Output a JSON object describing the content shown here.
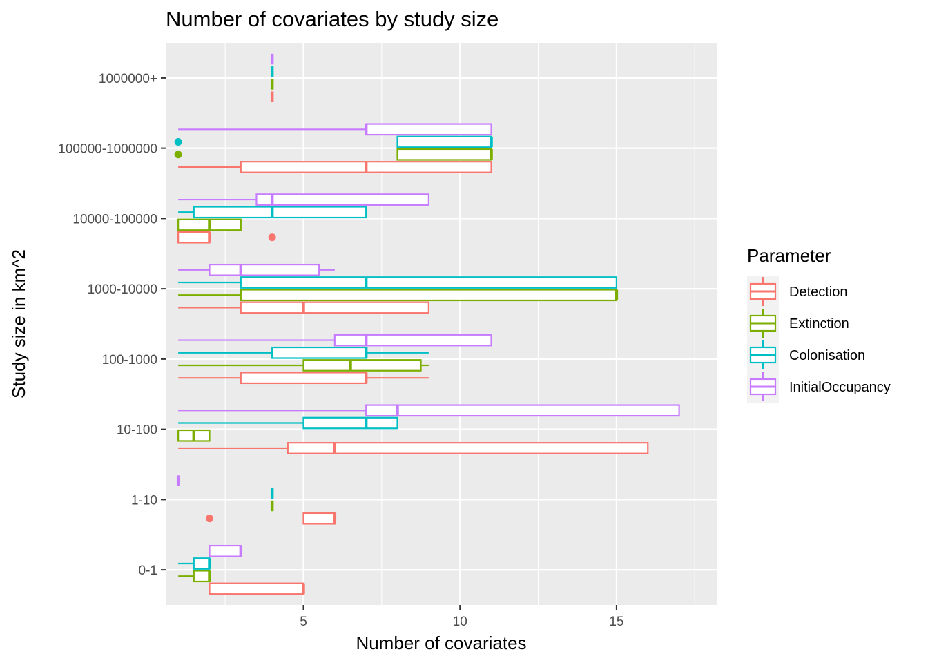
{
  "chart_data": {
    "type": "boxplot",
    "orientation": "horizontal",
    "title": "Number of covariates by study size",
    "xlabel": "Number of covariates",
    "ylabel": "Study size in km^2",
    "xlim": [
      0.6,
      18.2
    ],
    "x_ticks": [
      5,
      10,
      15
    ],
    "categories": [
      "0-1",
      "1-10",
      "10-100",
      "100-1000",
      "1000-10000",
      "10000-100000",
      "100000-1000000",
      "1000000+"
    ],
    "legend": {
      "title": "Parameter",
      "position": "right"
    },
    "grid": true,
    "series": [
      {
        "name": "Detection",
        "color": "#F8766D",
        "boxes": [
          {
            "category": "0-1",
            "min": 2,
            "q1": 2,
            "median": 5,
            "q3": 5,
            "max": 5,
            "outliers": []
          },
          {
            "category": "1-10",
            "min": 5,
            "q1": 5,
            "median": 6,
            "q3": 6,
            "max": 6,
            "outliers": [
              2
            ]
          },
          {
            "category": "10-100",
            "min": 1,
            "q1": 4.5,
            "median": 6,
            "q3": 16,
            "max": 16,
            "outliers": []
          },
          {
            "category": "100-1000",
            "min": 1,
            "q1": 3,
            "median": 7,
            "q3": 7,
            "max": 9,
            "outliers": []
          },
          {
            "category": "1000-10000",
            "min": 1,
            "q1": 3,
            "median": 5,
            "q3": 9,
            "max": 9,
            "outliers": []
          },
          {
            "category": "10000-100000",
            "min": 1,
            "q1": 1,
            "median": 2,
            "q3": 2,
            "max": 2,
            "outliers": [
              4
            ]
          },
          {
            "category": "100000-1000000",
            "min": 1,
            "q1": 3,
            "median": 7,
            "q3": 11,
            "max": 11,
            "outliers": []
          },
          {
            "category": "1000000+",
            "min": 4,
            "q1": 4,
            "median": 4,
            "q3": 4,
            "max": 4,
            "outliers": []
          }
        ]
      },
      {
        "name": "Extinction",
        "color": "#7CAE00",
        "boxes": [
          {
            "category": "0-1",
            "min": 1,
            "q1": 1.5,
            "median": 2,
            "q3": 2,
            "max": 2,
            "outliers": []
          },
          {
            "category": "1-10",
            "min": 4,
            "q1": 4,
            "median": 4,
            "q3": 4,
            "max": 4,
            "outliers": []
          },
          {
            "category": "10-100",
            "min": 1,
            "q1": 1,
            "median": 1.5,
            "q3": 2,
            "max": 2,
            "outliers": []
          },
          {
            "category": "100-1000",
            "min": 1,
            "q1": 5,
            "median": 6.5,
            "q3": 8.75,
            "max": 9,
            "outliers": []
          },
          {
            "category": "1000-10000",
            "min": 1,
            "q1": 3,
            "median": 15,
            "q3": 15,
            "max": 15,
            "outliers": []
          },
          {
            "category": "10000-100000",
            "min": 1,
            "q1": 1,
            "median": 2,
            "q3": 3,
            "max": 3,
            "outliers": []
          },
          {
            "category": "100000-1000000",
            "min": 8,
            "q1": 8,
            "median": 11,
            "q3": 11,
            "max": 11,
            "outliers": [
              1
            ]
          },
          {
            "category": "1000000+",
            "min": 4,
            "q1": 4,
            "median": 4,
            "q3": 4,
            "max": 4,
            "outliers": []
          }
        ]
      },
      {
        "name": "Colonisation",
        "color": "#00BFC4",
        "boxes": [
          {
            "category": "0-1",
            "min": 1,
            "q1": 1.5,
            "median": 2,
            "q3": 2,
            "max": 2,
            "outliers": []
          },
          {
            "category": "1-10",
            "min": 4,
            "q1": 4,
            "median": 4,
            "q3": 4,
            "max": 4,
            "outliers": []
          },
          {
            "category": "10-100",
            "min": 1,
            "q1": 5,
            "median": 7,
            "q3": 8,
            "max": 8,
            "outliers": []
          },
          {
            "category": "100-1000",
            "min": 1,
            "q1": 4,
            "median": 7,
            "q3": 7,
            "max": 9,
            "outliers": []
          },
          {
            "category": "1000-10000",
            "min": 1,
            "q1": 3,
            "median": 7,
            "q3": 15,
            "max": 15,
            "outliers": []
          },
          {
            "category": "10000-100000",
            "min": 1,
            "q1": 1.5,
            "median": 4,
            "q3": 7,
            "max": 7,
            "outliers": []
          },
          {
            "category": "100000-1000000",
            "min": 8,
            "q1": 8,
            "median": 11,
            "q3": 11,
            "max": 11,
            "outliers": [
              1
            ]
          },
          {
            "category": "1000000+",
            "min": 4,
            "q1": 4,
            "median": 4,
            "q3": 4,
            "max": 4,
            "outliers": []
          }
        ]
      },
      {
        "name": "InitialOccupancy",
        "color": "#C77CFF",
        "boxes": [
          {
            "category": "0-1",
            "min": 2,
            "q1": 2,
            "median": 3,
            "q3": 3,
            "max": 3,
            "outliers": []
          },
          {
            "category": "1-10",
            "min": 1,
            "q1": 1,
            "median": 1,
            "q3": 1,
            "max": 1,
            "outliers": []
          },
          {
            "category": "10-100",
            "min": 1,
            "q1": 7,
            "median": 8,
            "q3": 17,
            "max": 17,
            "outliers": []
          },
          {
            "category": "100-1000",
            "min": 1,
            "q1": 6,
            "median": 7,
            "q3": 11,
            "max": 11,
            "outliers": []
          },
          {
            "category": "1000-10000",
            "min": 1,
            "q1": 2,
            "median": 3,
            "q3": 5.5,
            "max": 6,
            "outliers": []
          },
          {
            "category": "10000-100000",
            "min": 1,
            "q1": 3.5,
            "median": 4,
            "q3": 9,
            "max": 9,
            "outliers": []
          },
          {
            "category": "100000-1000000",
            "min": 1,
            "q1": 7,
            "median": 7,
            "q3": 11,
            "max": 11,
            "outliers": []
          },
          {
            "category": "1000000+",
            "min": 4,
            "q1": 4,
            "median": 4,
            "q3": 4,
            "max": 4,
            "outliers": []
          }
        ]
      }
    ]
  }
}
